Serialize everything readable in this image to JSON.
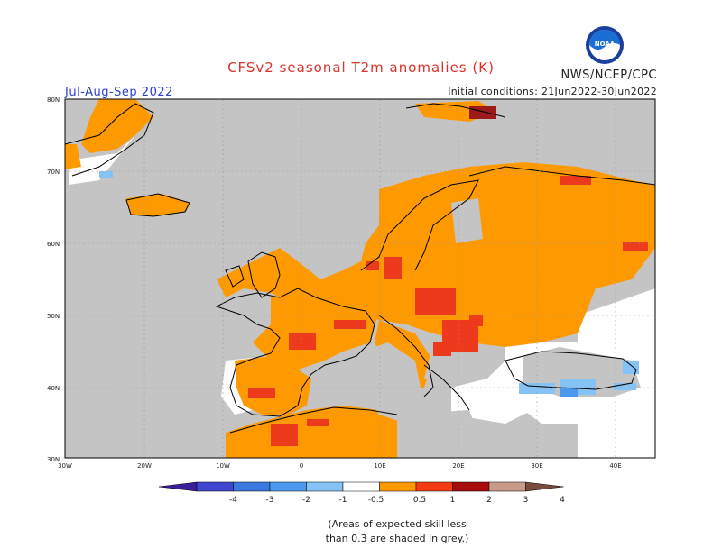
{
  "header": {
    "title": "CFSv2 seasonal T2m anomalies (K)",
    "season": "Jul-Aug-Sep 2022",
    "initial_conditions": "Initial conditions: 21Jun2022-30Jun2022",
    "agency": "NWS/NCEP/CPC",
    "logo_text": "NOAA"
  },
  "map": {
    "lat_ticks": [
      "80N",
      "70N",
      "60N",
      "50N",
      "40N",
      "30N"
    ],
    "lon_ticks": [
      "30W",
      "20W",
      "10W",
      "0",
      "10E",
      "20E",
      "30E",
      "40E"
    ]
  },
  "legend": {
    "tick_labels": [
      "-4",
      "-3",
      "-2",
      "-1",
      "-0.5",
      "0.5",
      "1",
      "2",
      "3",
      "4"
    ],
    "colors": [
      "#3a1e9c",
      "#3f46cf",
      "#3a78e0",
      "#4b98ef",
      "#85c2f5",
      "#ffffff",
      "#ff9900",
      "#f33a10",
      "#a80b0b",
      "#c89a8a",
      "#7a4a3e"
    ]
  },
  "colors": {
    "skill_grey": "#c4c4c4",
    "orange": "#ff9900",
    "red": "#ee3a1c",
    "dark_red": "#9c1a1a",
    "light_blue": "#85c2f5",
    "medium_blue": "#4b98ef"
  },
  "footnote": {
    "line1": "(Areas of expected skill less",
    "line2": "than 0.3 are shaded in grey.)"
  }
}
